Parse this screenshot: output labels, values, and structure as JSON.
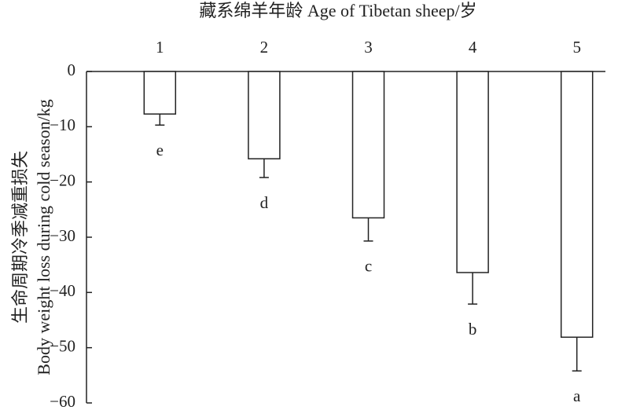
{
  "chart_data": {
    "type": "bar",
    "xlabel": "藏系绵羊年龄 Age of Tibetan sheep/岁",
    "ylabel": [
      "生命周期冷季减重损失",
      "Body weight loss during cold season/kg"
    ],
    "categories": [
      "1",
      "2",
      "3",
      "4",
      "5"
    ],
    "values": [
      -7.7,
      -15.8,
      -26.5,
      -36.4,
      -48.1
    ],
    "errors": [
      2.0,
      3.4,
      4.2,
      5.7,
      6.1
    ],
    "significance": [
      "e",
      "d",
      "c",
      "b",
      "a"
    ],
    "color": "#ffffff",
    "edgecolor": "#222222",
    "ylim": [
      -60,
      0
    ],
    "yticks": [
      {
        "value": 0,
        "label": "0"
      },
      {
        "value": -10,
        "label": "−10"
      },
      {
        "value": -20,
        "label": "−20"
      },
      {
        "value": -30,
        "label": "−30"
      },
      {
        "value": -40,
        "label": "−40"
      },
      {
        "value": -50,
        "label": "−50"
      },
      {
        "value": -60,
        "label": "−60"
      }
    ],
    "grid": false
  }
}
